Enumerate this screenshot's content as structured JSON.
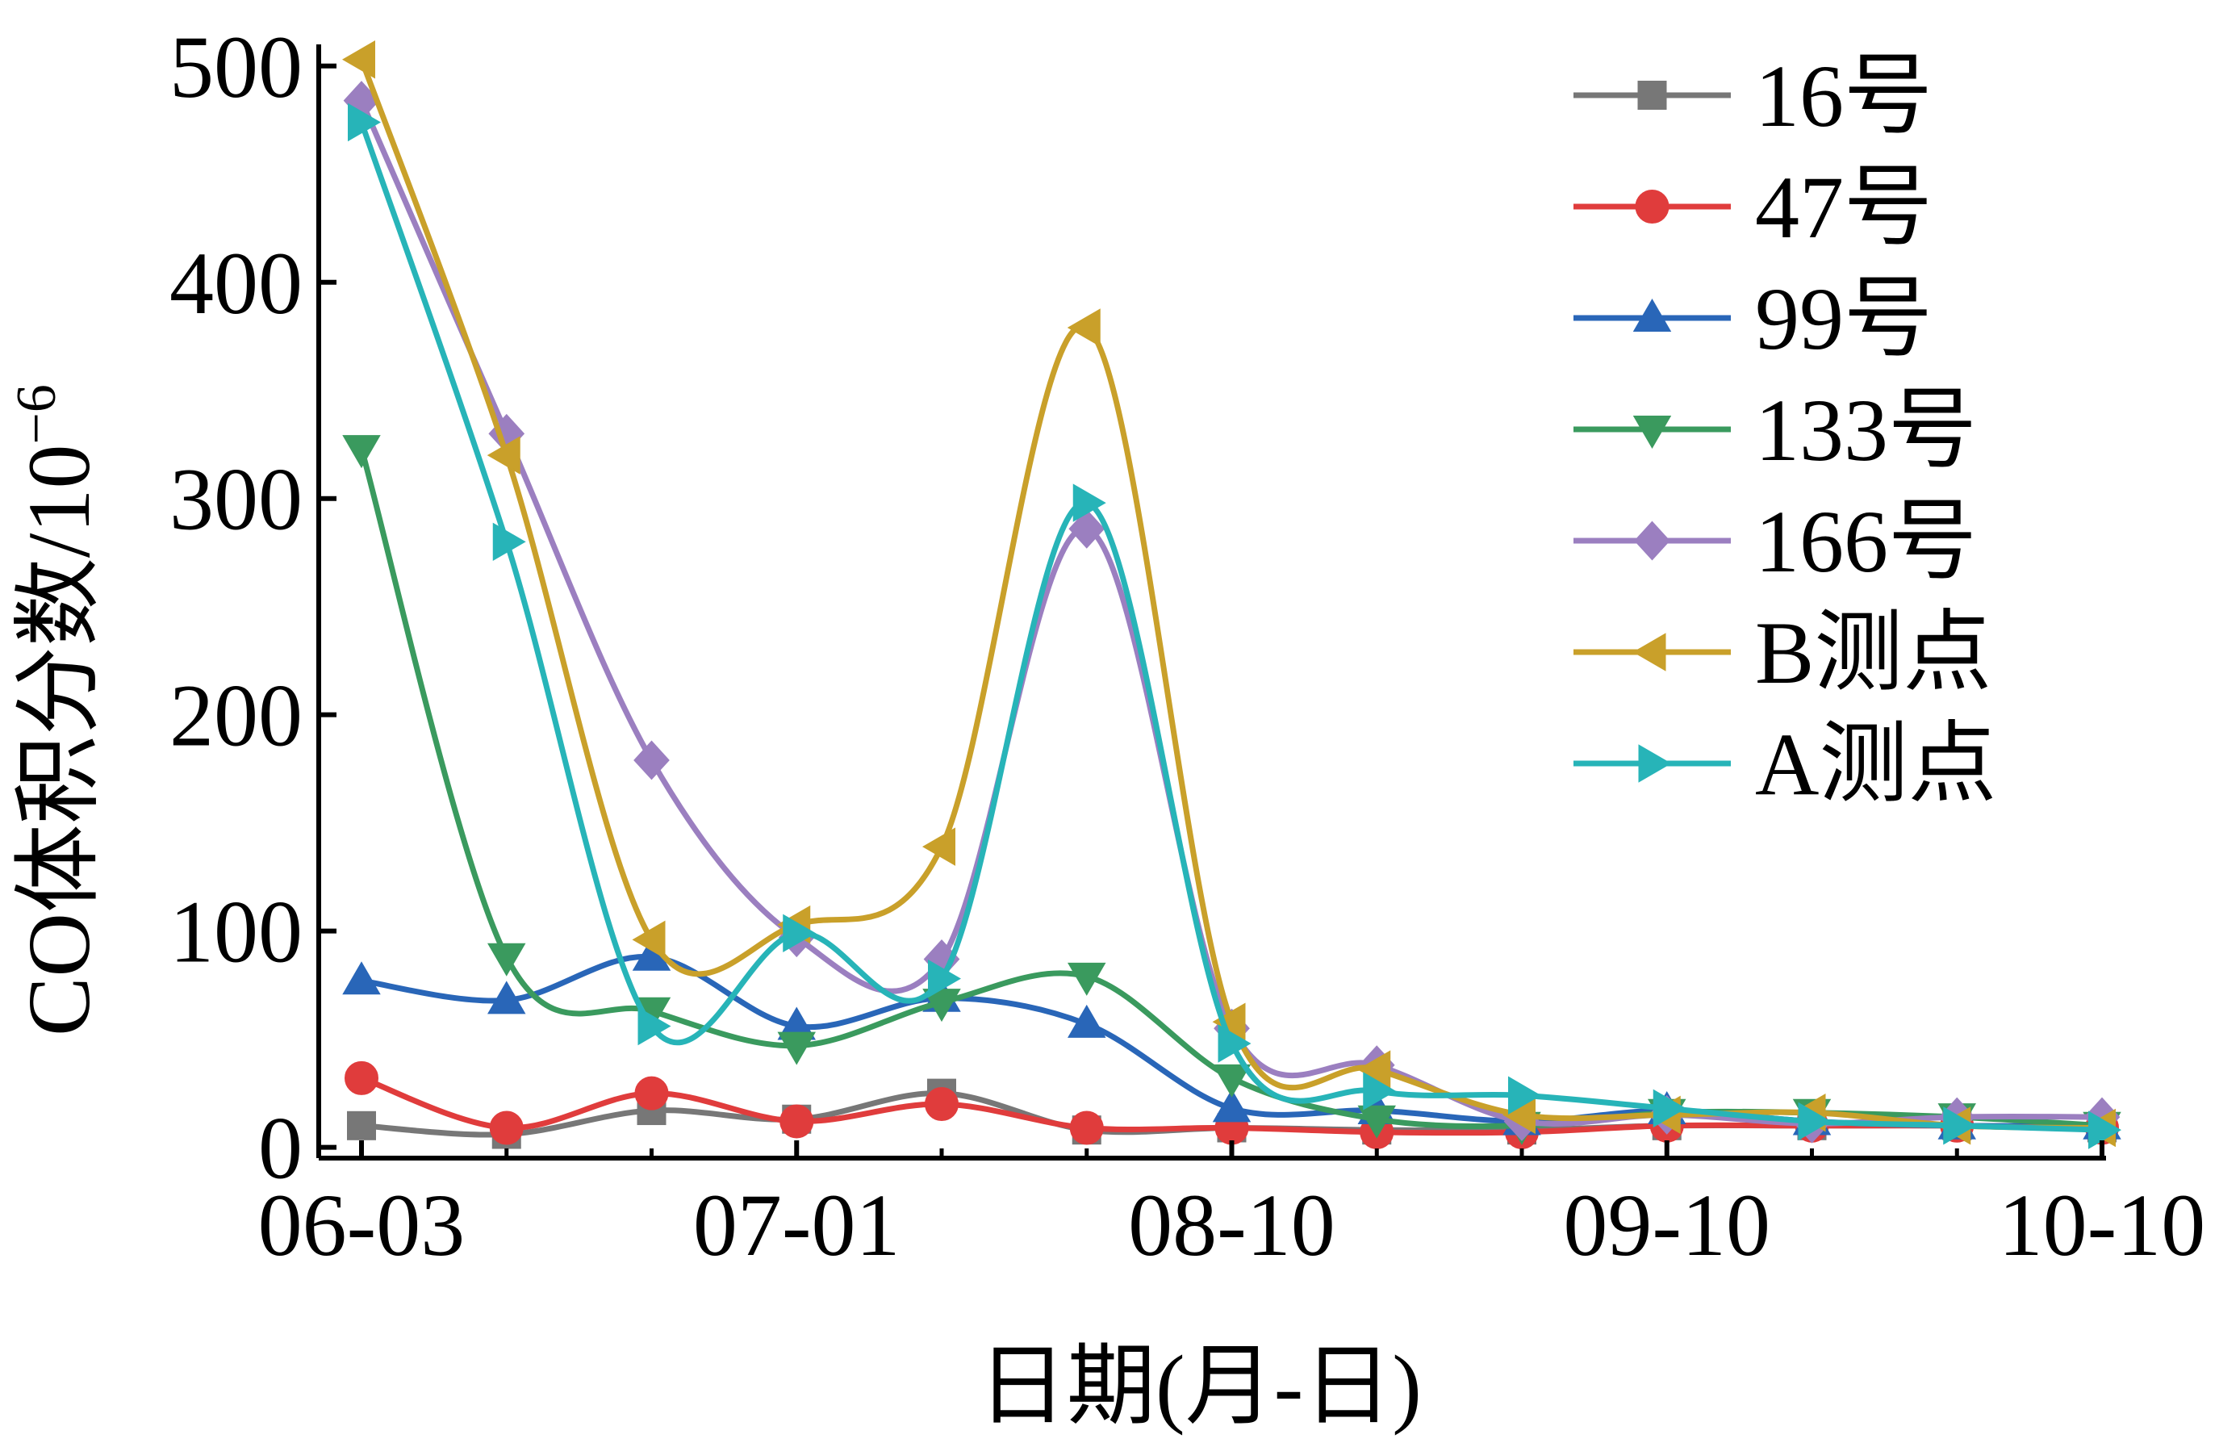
{
  "chart_data": {
    "type": "line",
    "xlabel": "日期(月-日)",
    "ylabel": "CO体积分数/10",
    "ylabel_exponent": "−6",
    "x_tick_labels": [
      "06-03",
      "07-01",
      "08-10",
      "09-10",
      "10-10"
    ],
    "y_tick_labels": [
      "0",
      "100",
      "200",
      "300",
      "400",
      "500"
    ],
    "y_ticks": [
      0,
      100,
      200,
      300,
      400,
      500
    ],
    "ylim": [
      -5,
      510
    ],
    "xlim": [
      0,
      12
    ],
    "grid": false,
    "legend_position": "top-right",
    "smooth": true,
    "series": [
      {
        "name": "16号",
        "color": "#777777",
        "marker": "square",
        "x": [
          0,
          1,
          2,
          3,
          4,
          5,
          6,
          7,
          8,
          9,
          10,
          11,
          12
        ],
        "values": [
          10,
          6,
          17,
          13,
          25,
          8,
          9,
          8,
          8,
          10,
          10,
          10,
          9
        ]
      },
      {
        "name": "47号",
        "color": "#e03c3c",
        "marker": "circle",
        "x": [
          0,
          1,
          2,
          3,
          4,
          5,
          6,
          7,
          8,
          9,
          10,
          11,
          12
        ],
        "values": [
          32,
          9,
          25,
          12,
          20,
          9,
          9,
          7,
          7,
          10,
          10,
          10,
          9
        ]
      },
      {
        "name": "99号",
        "color": "#2966b8",
        "marker": "triangle-up",
        "x": [
          0,
          1,
          2,
          3,
          4,
          5,
          6,
          7,
          8,
          9,
          10,
          11,
          12
        ],
        "values": [
          77,
          68,
          88,
          56,
          69,
          57,
          18,
          17,
          12,
          17,
          12,
          10,
          10
        ]
      },
      {
        "name": "133号",
        "color": "#3a9a5e",
        "marker": "triangle-down",
        "x": [
          0,
          1,
          2,
          3,
          4,
          5,
          6,
          7,
          8,
          9,
          10,
          11,
          12
        ],
        "values": [
          323,
          88,
          63,
          47,
          67,
          79,
          32,
          13,
          10,
          16,
          16,
          14,
          10
        ]
      },
      {
        "name": "166号",
        "color": "#9b7fc0",
        "marker": "diamond",
        "x": [
          0,
          1,
          2,
          3,
          4,
          5,
          6,
          7,
          8,
          9,
          10,
          11,
          12
        ],
        "values": [
          484,
          330,
          179,
          97,
          87,
          286,
          55,
          38,
          12,
          15,
          11,
          14,
          14
        ]
      },
      {
        "name": "B测点",
        "color": "#c9a02a",
        "marker": "triangle-left",
        "x": [
          0,
          1,
          2,
          3,
          4,
          5,
          6,
          7,
          8,
          9,
          10,
          11,
          12
        ],
        "values": [
          503,
          320,
          96,
          103,
          139,
          379,
          58,
          36,
          15,
          15,
          16,
          10,
          9
        ]
      },
      {
        "name": "A测点",
        "color": "#27b4b8",
        "marker": "triangle-right",
        "x": [
          0,
          1,
          2,
          3,
          4,
          5,
          6,
          7,
          8,
          9,
          10,
          11,
          12
        ],
        "values": [
          474,
          280,
          56,
          99,
          78,
          298,
          48,
          26,
          24,
          18,
          12,
          10,
          8
        ]
      }
    ]
  }
}
